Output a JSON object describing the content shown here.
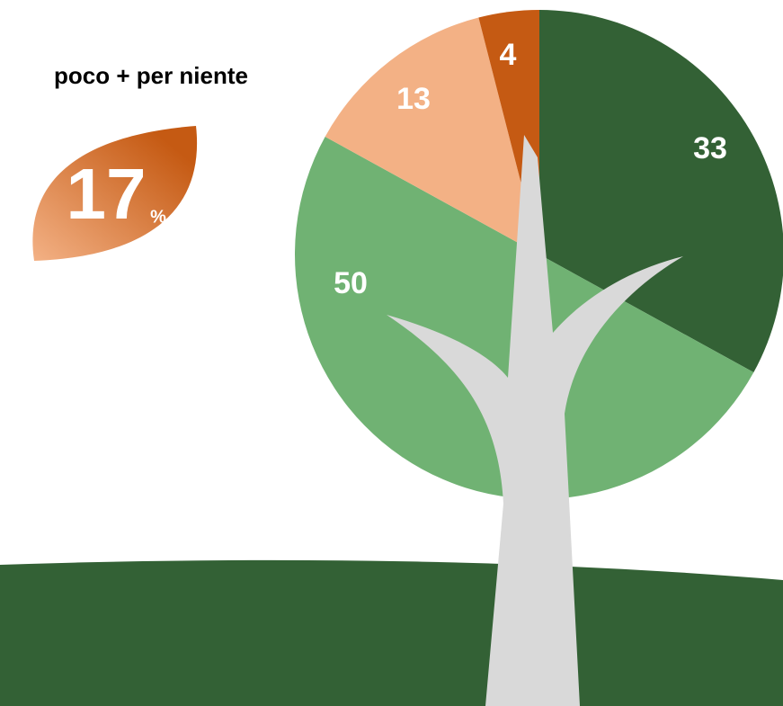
{
  "chart_data": {
    "type": "pie",
    "values": [
      33,
      50,
      13,
      4
    ],
    "colors": [
      "#336135",
      "#70b273",
      "#f3b185",
      "#c55a13"
    ],
    "callout_label": "poco + per niente",
    "callout_value": 17,
    "callout_unit": "%"
  }
}
